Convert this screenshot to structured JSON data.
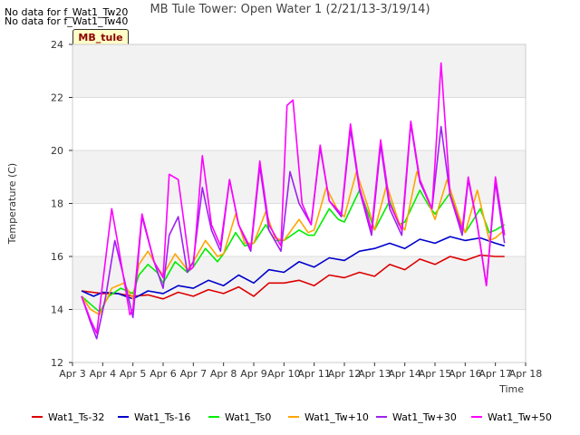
{
  "header": {
    "nodata_1": "No data for f_Wat1_Tw20",
    "nodata_2": "No data for f_Wat1_Tw40",
    "site_label": "MB_tule"
  },
  "chart_data": {
    "type": "line",
    "title": "MB Tule Tower: Open Water 1 (2/21/13-3/19/14)",
    "xlabel": "Time",
    "ylabel": "Temperature (C)",
    "xlim": [
      3,
      18
    ],
    "ylim": [
      12,
      24
    ],
    "x_ticks": [
      {
        "v": 3,
        "label": "Apr 3"
      },
      {
        "v": 4,
        "label": "Apr 4"
      },
      {
        "v": 5,
        "label": "Apr 5"
      },
      {
        "v": 6,
        "label": "Apr 6"
      },
      {
        "v": 7,
        "label": "Apr 7"
      },
      {
        "v": 8,
        "label": "Apr 8"
      },
      {
        "v": 9,
        "label": "Apr 9"
      },
      {
        "v": 10,
        "label": "Apr 10"
      },
      {
        "v": 11,
        "label": "Apr 11"
      },
      {
        "v": 12,
        "label": "Apr 12"
      },
      {
        "v": 13,
        "label": "Apr 13"
      },
      {
        "v": 14,
        "label": "Apr 14"
      },
      {
        "v": 15,
        "label": "Apr 15"
      },
      {
        "v": 16,
        "label": "Apr 16"
      },
      {
        "v": 17,
        "label": "Apr 17"
      },
      {
        "v": 18,
        "label": "Apr 18"
      }
    ],
    "y_ticks": [
      {
        "v": 12,
        "label": "12"
      },
      {
        "v": 14,
        "label": "14"
      },
      {
        "v": 16,
        "label": "16"
      },
      {
        "v": 18,
        "label": "18"
      },
      {
        "v": 20,
        "label": "20"
      },
      {
        "v": 22,
        "label": "22"
      },
      {
        "v": 24,
        "label": "24"
      }
    ],
    "grid": true,
    "legend_position": "bottom",
    "series": [
      {
        "name": "Wat1_Ts-32",
        "color": "#dd0000",
        "x": [
          3.3,
          4.0,
          4.5,
          5.0,
          5.5,
          6.0,
          6.5,
          7.0,
          7.5,
          8.0,
          8.5,
          9.0,
          9.5,
          10.0,
          10.5,
          11.0,
          11.5,
          12.0,
          12.5,
          13.0,
          13.5,
          14.0,
          14.5,
          15.0,
          15.5,
          16.0,
          16.5,
          17.0,
          17.3
        ],
        "y": [
          14.7,
          14.6,
          14.6,
          14.5,
          14.55,
          14.4,
          14.65,
          14.5,
          14.75,
          14.6,
          14.85,
          14.5,
          15.0,
          15.0,
          15.1,
          14.9,
          15.3,
          15.2,
          15.4,
          15.25,
          15.7,
          15.5,
          15.9,
          15.7,
          16.0,
          15.85,
          16.05,
          16.0,
          16.0
        ]
      },
      {
        "name": "Wat1_Ts-16",
        "color": "#0000cc",
        "x": [
          3.3,
          3.7,
          4.0,
          4.5,
          5.0,
          5.5,
          6.0,
          6.5,
          7.0,
          7.5,
          8.0,
          8.5,
          9.0,
          9.5,
          10.0,
          10.5,
          11.0,
          11.5,
          12.0,
          12.5,
          13.0,
          13.5,
          14.0,
          14.5,
          15.0,
          15.5,
          16.0,
          16.5,
          17.0,
          17.3
        ],
        "y": [
          14.7,
          14.5,
          14.65,
          14.6,
          14.4,
          14.7,
          14.6,
          14.9,
          14.8,
          15.1,
          14.9,
          15.3,
          15.0,
          15.5,
          15.4,
          15.8,
          15.6,
          15.95,
          15.85,
          16.2,
          16.3,
          16.5,
          16.3,
          16.65,
          16.5,
          16.75,
          16.6,
          16.7,
          16.5,
          16.4
        ]
      },
      {
        "name": "Wat1_Ts0",
        "color": "#00ee00",
        "x": [
          3.3,
          3.6,
          3.9,
          4.2,
          4.6,
          5.0,
          5.2,
          5.5,
          5.8,
          6.0,
          6.4,
          6.8,
          7.0,
          7.4,
          7.8,
          8.0,
          8.4,
          8.7,
          9.0,
          9.4,
          9.7,
          10.0,
          10.5,
          10.8,
          11.0,
          11.5,
          11.8,
          12.0,
          12.5,
          12.8,
          13.0,
          13.5,
          13.8,
          14.0,
          14.5,
          14.8,
          15.0,
          15.5,
          15.8,
          16.0,
          16.5,
          16.8,
          17.0,
          17.3
        ],
        "y": [
          14.5,
          14.2,
          13.9,
          14.5,
          14.8,
          14.6,
          15.3,
          15.7,
          15.4,
          15.0,
          15.8,
          15.4,
          15.6,
          16.3,
          15.8,
          16.1,
          16.9,
          16.4,
          16.5,
          17.2,
          16.6,
          16.6,
          17.0,
          16.8,
          16.8,
          17.8,
          17.4,
          17.3,
          18.5,
          17.6,
          17.0,
          18.1,
          17.2,
          17.3,
          18.5,
          17.9,
          17.6,
          18.4,
          17.4,
          16.9,
          17.8,
          16.9,
          17.0,
          17.2
        ]
      },
      {
        "name": "Wat1_Tw+10",
        "color": "#ffa500",
        "x": [
          3.3,
          3.6,
          3.9,
          4.3,
          4.7,
          5.0,
          5.2,
          5.5,
          5.8,
          6.0,
          6.4,
          6.8,
          7.0,
          7.4,
          7.8,
          8.0,
          8.4,
          8.7,
          9.0,
          9.4,
          9.7,
          10.0,
          10.5,
          10.8,
          11.0,
          11.4,
          11.8,
          12.0,
          12.4,
          12.8,
          13.0,
          13.4,
          13.8,
          14.0,
          14.4,
          14.8,
          15.0,
          15.4,
          15.8,
          16.0,
          16.4,
          16.8,
          17.0,
          17.3
        ],
        "y": [
          14.5,
          14.0,
          13.8,
          14.8,
          15.0,
          14.4,
          15.7,
          16.2,
          15.6,
          15.3,
          16.1,
          15.5,
          15.8,
          16.6,
          16.0,
          16.1,
          17.6,
          16.5,
          16.5,
          17.7,
          16.7,
          16.6,
          17.4,
          16.9,
          17.0,
          18.6,
          17.7,
          17.5,
          19.2,
          17.8,
          17.0,
          18.7,
          17.3,
          17.0,
          19.2,
          18.0,
          17.4,
          18.9,
          17.5,
          16.9,
          18.5,
          16.6,
          16.7,
          17.0
        ]
      },
      {
        "name": "Wat1_Tw+30",
        "color": "#a020f0",
        "x": [
          3.3,
          3.6,
          3.8,
          4.1,
          4.4,
          4.7,
          5.0,
          5.3,
          5.7,
          6.0,
          6.2,
          6.5,
          6.8,
          7.0,
          7.3,
          7.6,
          7.9,
          8.2,
          8.5,
          8.9,
          9.2,
          9.5,
          9.9,
          10.2,
          10.5,
          10.9,
          11.2,
          11.5,
          11.9,
          12.2,
          12.5,
          12.9,
          13.2,
          13.5,
          13.9,
          14.2,
          14.5,
          14.9,
          15.2,
          15.5,
          15.9,
          16.1,
          16.4,
          16.7,
          17.0,
          17.3
        ],
        "y": [
          14.5,
          13.5,
          12.9,
          14.5,
          16.6,
          15.2,
          13.7,
          17.5,
          15.8,
          14.8,
          16.8,
          17.5,
          15.4,
          15.8,
          18.6,
          17.0,
          16.2,
          18.9,
          17.2,
          16.2,
          19.4,
          17.0,
          16.2,
          19.2,
          18.0,
          17.2,
          20.1,
          18.1,
          17.5,
          20.8,
          18.5,
          16.8,
          20.2,
          17.8,
          16.8,
          21.0,
          18.8,
          17.8,
          20.9,
          18.3,
          16.8,
          18.9,
          17.2,
          14.9,
          18.8,
          16.5
        ]
      },
      {
        "name": "Wat1_Tw+50",
        "color": "#ff00ff",
        "x": [
          3.3,
          3.6,
          3.8,
          4.0,
          4.3,
          4.5,
          4.9,
          5.0,
          5.3,
          5.7,
          6.0,
          6.2,
          6.5,
          6.9,
          7.0,
          7.3,
          7.6,
          7.9,
          8.2,
          8.5,
          8.9,
          9.2,
          9.5,
          9.9,
          10.1,
          10.3,
          10.6,
          10.9,
          11.2,
          11.5,
          11.9,
          12.2,
          12.5,
          12.9,
          13.2,
          13.5,
          13.9,
          14.2,
          14.5,
          14.9,
          15.0,
          15.2,
          15.5,
          15.9,
          16.1,
          16.4,
          16.7,
          17.0,
          17.3
        ],
        "y": [
          14.5,
          13.6,
          13.1,
          15.0,
          17.8,
          16.5,
          13.8,
          14.0,
          17.6,
          15.8,
          15.2,
          19.1,
          18.9,
          15.5,
          15.6,
          19.8,
          17.2,
          16.4,
          18.9,
          17.2,
          16.3,
          19.6,
          17.2,
          16.4,
          21.7,
          21.9,
          18.0,
          17.2,
          20.2,
          18.1,
          17.6,
          21.0,
          18.6,
          17.0,
          20.4,
          18.0,
          17.0,
          21.1,
          18.9,
          17.8,
          19.5,
          23.3,
          18.3,
          17.0,
          19.0,
          17.2,
          14.9,
          19.0,
          16.8
        ]
      }
    ]
  }
}
